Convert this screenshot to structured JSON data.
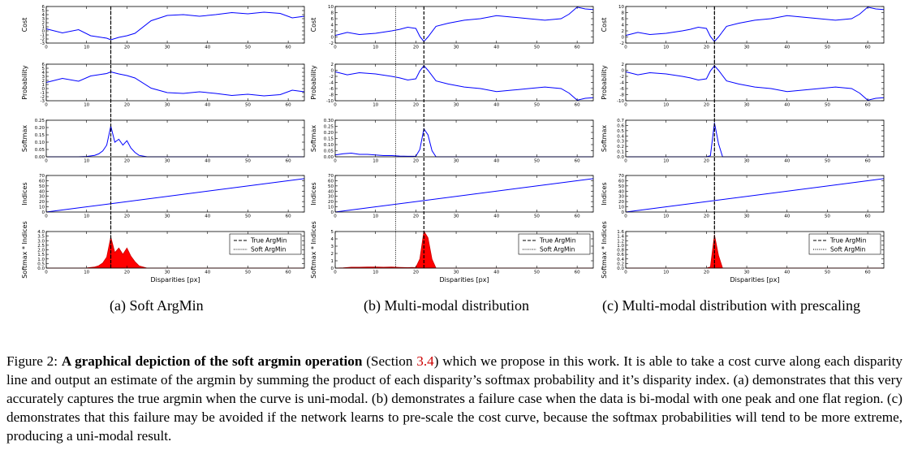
{
  "columns": [
    {
      "id": "a",
      "caption": "(a) Soft ArgMin",
      "true_argmin": 16,
      "soft_argmin": 16
    },
    {
      "id": "b",
      "caption": "(b) Multi-modal distribution",
      "true_argmin": 22,
      "soft_argmin": 15
    },
    {
      "id": "c",
      "caption": "(c) Multi-modal distribution with prescaling",
      "true_argmin": 22,
      "soft_argmin": 22
    }
  ],
  "row_labels": [
    "Cost",
    "Probability",
    "Softmax",
    "Indices",
    "Softmax * Indices"
  ],
  "xlabel": "Disparities [px]",
  "legend": {
    "true": "True ArgMin",
    "soft": "Soft ArgMin"
  },
  "caption": {
    "label": "Figure 2:",
    "bold": "A graphical depiction of the soft argmin operation",
    "section_pre": "(Section",
    "section_ref": "3.4",
    "rest": ") which we propose in this work. It is able to take a cost curve along each disparity line and output an estimate of the argmin by summing the product of each disparity’s softmax probability and it’s disparity index. (a) demonstrates that this very accurately captures the true argmin when the curve is uni-modal. (b) demonstrates a failure case when the data is bi-modal with one peak and one flat region. (c) demonstrates that this failure may be avoided if the network learns to pre-scale the cost curve, because the softmax probabilities will tend to be more extreme, producing a uni-modal result."
  },
  "chart_data": [
    {
      "type": "line",
      "panel": "a",
      "xlim": [
        0,
        64
      ],
      "x_ticks": [
        0,
        10,
        20,
        30,
        40,
        50,
        60
      ],
      "series": [
        {
          "row": "Cost",
          "ylim": [
            -3,
            6
          ],
          "y_ticks": [
            "-3",
            "-2",
            "-1",
            "0",
            "1",
            "2",
            "3",
            "4",
            "5",
            "6"
          ],
          "x": [
            0,
            4,
            8,
            11,
            13,
            15,
            16,
            18,
            20,
            22,
            26,
            30,
            34,
            38,
            42,
            46,
            50,
            54,
            58,
            61,
            64
          ],
          "y": [
            0.5,
            -0.5,
            0.3,
            -1.2,
            -1.5,
            -1.8,
            -2.2,
            -1.6,
            -1.2,
            -0.6,
            2.5,
            3.8,
            4.0,
            3.6,
            4.0,
            4.5,
            4.2,
            4.6,
            4.3,
            3.2,
            3.6
          ]
        },
        {
          "row": "Probability",
          "ylim": [
            -3,
            6
          ],
          "y_ticks": [
            "-3",
            "-2",
            "-1",
            "0",
            "1",
            "2",
            "3",
            "4",
            "5",
            "6"
          ],
          "x": [
            0,
            4,
            8,
            11,
            13,
            15,
            16,
            18,
            20,
            22,
            26,
            30,
            34,
            38,
            42,
            46,
            50,
            54,
            58,
            61,
            64
          ],
          "y": [
            1.5,
            2.5,
            1.8,
            3.1,
            3.4,
            3.7,
            4.1,
            3.6,
            3.2,
            2.6,
            0.1,
            -1.0,
            -1.2,
            -0.8,
            -1.2,
            -1.7,
            -1.4,
            -1.8,
            -1.5,
            -0.4,
            -0.8
          ]
        },
        {
          "row": "Softmax",
          "ylim": [
            0,
            0.25
          ],
          "y_ticks": [
            "0.00",
            "0.05",
            "0.10",
            "0.15",
            "0.20",
            "0.25"
          ],
          "x": [
            0,
            8,
            10,
            12,
            13,
            14,
            15,
            16,
            17,
            18,
            19,
            20,
            21,
            22,
            23,
            25,
            30,
            64
          ],
          "y": [
            0,
            0,
            0.002,
            0.01,
            0.02,
            0.04,
            0.08,
            0.21,
            0.1,
            0.12,
            0.08,
            0.11,
            0.06,
            0.03,
            0.01,
            0,
            0,
            0
          ]
        },
        {
          "row": "Indices",
          "ylim": [
            0,
            70
          ],
          "y_ticks": [
            "0",
            "10",
            "20",
            "30",
            "40",
            "50",
            "60",
            "70"
          ],
          "x": [
            0,
            64
          ],
          "y": [
            0,
            64
          ]
        },
        {
          "row": "Softmax * Indices",
          "ylim": [
            0,
            4
          ],
          "y_ticks": [
            "0.0",
            "0.5",
            "1.0",
            "1.5",
            "2.0",
            "2.5",
            "3.0",
            "3.5",
            "4.0"
          ],
          "x": [
            0,
            8,
            10,
            12,
            13,
            14,
            15,
            16,
            17,
            18,
            19,
            20,
            21,
            22,
            23,
            25,
            30,
            64
          ],
          "y": [
            0,
            0,
            0.02,
            0.12,
            0.26,
            0.56,
            1.2,
            3.4,
            1.7,
            2.2,
            1.5,
            2.2,
            1.3,
            0.7,
            0.25,
            0,
            0,
            0
          ]
        }
      ]
    },
    {
      "type": "line",
      "panel": "b",
      "xlim": [
        0,
        64
      ],
      "x_ticks": [
        0,
        10,
        20,
        30,
        40,
        50,
        60
      ],
      "series": [
        {
          "row": "Cost",
          "ylim": [
            -2,
            10
          ],
          "y_ticks": [
            "-2",
            "0",
            "2",
            "4",
            "6",
            "8",
            "10"
          ],
          "x": [
            0,
            3,
            6,
            10,
            14,
            16,
            18,
            20,
            21,
            22,
            23,
            25,
            28,
            32,
            36,
            40,
            44,
            48,
            52,
            56,
            58,
            60,
            62,
            64
          ],
          "y": [
            0.5,
            1.5,
            0.8,
            1.2,
            2.0,
            2.5,
            3.2,
            2.8,
            0.2,
            -1.5,
            0,
            3.5,
            4.5,
            5.5,
            6.0,
            7.0,
            6.5,
            6.0,
            5.5,
            6.0,
            7.5,
            9.8,
            9.2,
            9.0
          ]
        },
        {
          "row": "Probability",
          "ylim": [
            -10,
            2
          ],
          "y_ticks": [
            "-10",
            "-8",
            "-6",
            "-4",
            "-2",
            "0",
            "2"
          ],
          "x": [
            0,
            3,
            6,
            10,
            14,
            16,
            18,
            20,
            21,
            22,
            23,
            25,
            28,
            32,
            36,
            40,
            44,
            48,
            52,
            56,
            58,
            60,
            62,
            64
          ],
          "y": [
            -0.5,
            -1.5,
            -0.8,
            -1.2,
            -2.0,
            -2.5,
            -3.2,
            -2.8,
            -0.2,
            1.5,
            0,
            -3.5,
            -4.5,
            -5.5,
            -6.0,
            -7.0,
            -6.5,
            -6.0,
            -5.5,
            -6.0,
            -7.5,
            -9.8,
            -9.2,
            -9.0
          ]
        },
        {
          "row": "Softmax",
          "ylim": [
            0,
            0.3
          ],
          "y_ticks": [
            "0.00",
            "0.05",
            "0.10",
            "0.15",
            "0.20",
            "0.25",
            "0.30"
          ],
          "x": [
            0,
            2,
            4,
            6,
            8,
            10,
            12,
            14,
            16,
            18,
            20,
            21,
            22,
            23,
            24,
            25,
            64
          ],
          "y": [
            0.015,
            0.025,
            0.03,
            0.02,
            0.02,
            0.015,
            0.01,
            0.01,
            0.006,
            0.004,
            0.005,
            0.06,
            0.23,
            0.18,
            0.05,
            0,
            0
          ]
        },
        {
          "row": "Indices",
          "ylim": [
            0,
            70
          ],
          "y_ticks": [
            "0",
            "10",
            "20",
            "30",
            "40",
            "50",
            "60",
            "70"
          ],
          "x": [
            0,
            64
          ],
          "y": [
            0,
            64
          ]
        },
        {
          "row": "Softmax * Indices",
          "ylim": [
            0,
            5
          ],
          "y_ticks": [
            "0",
            "1",
            "2",
            "3",
            "4",
            "5"
          ],
          "x": [
            0,
            2,
            4,
            6,
            8,
            10,
            12,
            14,
            16,
            18,
            20,
            21,
            22,
            23,
            24,
            25,
            64
          ],
          "y": [
            0,
            0.05,
            0.12,
            0.12,
            0.16,
            0.15,
            0.12,
            0.14,
            0.1,
            0.07,
            0.1,
            1.26,
            5.06,
            4.14,
            1.2,
            0,
            0
          ]
        }
      ]
    },
    {
      "type": "line",
      "panel": "c",
      "xlim": [
        0,
        64
      ],
      "x_ticks": [
        0,
        10,
        20,
        30,
        40,
        50,
        60
      ],
      "series": [
        {
          "row": "Cost",
          "ylim": [
            -2,
            10
          ],
          "y_ticks": [
            "-2",
            "0",
            "2",
            "4",
            "6",
            "8",
            "10"
          ],
          "x": [
            0,
            3,
            6,
            10,
            14,
            16,
            18,
            20,
            21,
            22,
            23,
            25,
            28,
            32,
            36,
            40,
            44,
            48,
            52,
            56,
            58,
            60,
            62,
            64
          ],
          "y": [
            0.5,
            1.5,
            0.8,
            1.2,
            2.0,
            2.5,
            3.2,
            2.8,
            0.2,
            -1.5,
            0,
            3.5,
            4.5,
            5.5,
            6.0,
            7.0,
            6.5,
            6.0,
            5.5,
            6.0,
            7.5,
            9.8,
            9.2,
            9.0
          ]
        },
        {
          "row": "Probability",
          "ylim": [
            -10,
            2
          ],
          "y_ticks": [
            "-10",
            "-8",
            "-6",
            "-4",
            "-2",
            "0",
            "2"
          ],
          "x": [
            0,
            3,
            6,
            10,
            14,
            16,
            18,
            20,
            21,
            22,
            23,
            25,
            28,
            32,
            36,
            40,
            44,
            48,
            52,
            56,
            58,
            60,
            62,
            64
          ],
          "y": [
            -0.5,
            -1.5,
            -0.8,
            -1.2,
            -2.0,
            -2.5,
            -3.2,
            -2.8,
            -0.2,
            1.5,
            0,
            -3.5,
            -4.5,
            -5.5,
            -6.0,
            -7.0,
            -6.5,
            -6.0,
            -5.5,
            -6.0,
            -7.5,
            -9.8,
            -9.2,
            -9.0
          ]
        },
        {
          "row": "Softmax",
          "ylim": [
            0,
            0.7
          ],
          "y_ticks": [
            "0.0",
            "0.1",
            "0.2",
            "0.3",
            "0.4",
            "0.5",
            "0.6",
            "0.7"
          ],
          "x": [
            0,
            20,
            21,
            22,
            23,
            24,
            64
          ],
          "y": [
            0,
            0,
            0.02,
            0.65,
            0.25,
            0,
            0
          ]
        },
        {
          "row": "Indices",
          "ylim": [
            0,
            70
          ],
          "y_ticks": [
            "0",
            "10",
            "20",
            "30",
            "40",
            "50",
            "60",
            "70"
          ],
          "x": [
            0,
            64
          ],
          "y": [
            0,
            64
          ]
        },
        {
          "row": "Softmax * Indices",
          "ylim": [
            0,
            1.6
          ],
          "y_ticks": [
            "0.0",
            "0.2",
            "0.4",
            "0.6",
            "0.8",
            "1.0",
            "1.2",
            "1.4",
            "1.6"
          ],
          "x": [
            0,
            20,
            21,
            22,
            23,
            24,
            64
          ],
          "y": [
            0,
            0,
            0.05,
            1.45,
            0.55,
            0,
            0
          ]
        }
      ]
    }
  ]
}
